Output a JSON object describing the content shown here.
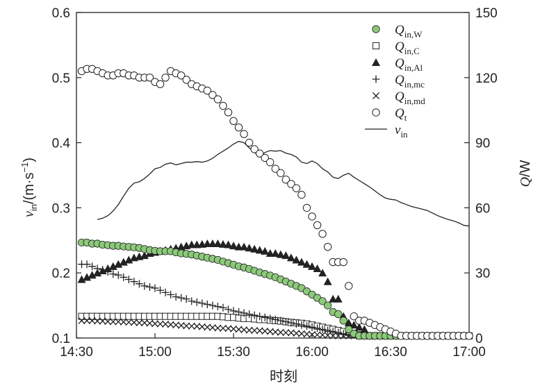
{
  "chart_data": {
    "type": "line",
    "xlabel": "时刻",
    "ylabel_left": {
      "base": "v",
      "sub": "in",
      "unit": "/(m·s",
      "exp": "−1",
      "close": ")"
    },
    "ylabel_right": {
      "base": "Q",
      "unit": "/W"
    },
    "x_tick_labels": [
      "14:30",
      "15:00",
      "15:30",
      "16:00",
      "16:30",
      "17:00"
    ],
    "x_range_minutes": [
      870,
      1020
    ],
    "y_left_range": [
      0.1,
      0.6
    ],
    "y_left_ticks": [
      "0.1",
      "0.2",
      "0.3",
      "0.4",
      "0.5",
      "0.6"
    ],
    "y_right_range": [
      0,
      150
    ],
    "y_right_ticks": [
      "0",
      "30",
      "60",
      "90",
      "120",
      "150"
    ],
    "legend": [
      {
        "base": "Q",
        "sub": "in,W",
        "key": "QinW",
        "marker": "circle-green"
      },
      {
        "base": "Q",
        "sub": "in,C",
        "key": "QinC",
        "marker": "square-open"
      },
      {
        "base": "Q",
        "sub": "in,Al",
        "key": "QinAl",
        "marker": "triangle-filled"
      },
      {
        "base": "Q",
        "sub": "in,mc",
        "key": "Qinmc",
        "marker": "plus"
      },
      {
        "base": "Q",
        "sub": "in,md",
        "key": "Qinmd",
        "marker": "cross"
      },
      {
        "base": "Q",
        "sub": "t",
        "key": "Qt",
        "marker": "circle-open"
      },
      {
        "base": "v",
        "sub": "in",
        "key": "vin",
        "marker": "line"
      }
    ],
    "colors": {
      "QinW": "#8cc97a",
      "axis": "#222222"
    },
    "series": [
      {
        "key": "vin",
        "axis": "left",
        "x": [
          878,
          880,
          882,
          884,
          886,
          888,
          890,
          892,
          894,
          896,
          898,
          900,
          902,
          904,
          906,
          908,
          910,
          912,
          914,
          916,
          918,
          920,
          922,
          924,
          926,
          928,
          930,
          932,
          934,
          936,
          938,
          940,
          942,
          944,
          946,
          948,
          950,
          952,
          954,
          956,
          958,
          960,
          962,
          964,
          966,
          968,
          970,
          972,
          974,
          976,
          978,
          980,
          982,
          984,
          986,
          988,
          990,
          992,
          994,
          996,
          998,
          1000,
          1002,
          1004,
          1006,
          1008,
          1010,
          1012,
          1014,
          1016,
          1018,
          1020
        ],
        "y": [
          0.282,
          0.284,
          0.288,
          0.295,
          0.305,
          0.318,
          0.33,
          0.338,
          0.34,
          0.345,
          0.352,
          0.36,
          0.362,
          0.367,
          0.369,
          0.366,
          0.368,
          0.37,
          0.37,
          0.371,
          0.37,
          0.372,
          0.376,
          0.382,
          0.387,
          0.392,
          0.398,
          0.402,
          0.4,
          0.392,
          0.385,
          0.38,
          0.385,
          0.388,
          0.387,
          0.388,
          0.384,
          0.382,
          0.378,
          0.37,
          0.368,
          0.372,
          0.368,
          0.36,
          0.355,
          0.347,
          0.345,
          0.35,
          0.353,
          0.347,
          0.342,
          0.337,
          0.332,
          0.326,
          0.32,
          0.315,
          0.313,
          0.312,
          0.308,
          0.305,
          0.302,
          0.3,
          0.298,
          0.296,
          0.292,
          0.288,
          0.285,
          0.282,
          0.28,
          0.277,
          0.273,
          0.272
        ]
      },
      {
        "key": "Qt",
        "axis": "right",
        "x": [
          872,
          874,
          876,
          878,
          880,
          882,
          884,
          886,
          888,
          890,
          892,
          894,
          896,
          898,
          900,
          902,
          904,
          906,
          908,
          910,
          912,
          914,
          916,
          918,
          920,
          922,
          924,
          926,
          928,
          930,
          932,
          934,
          936,
          938,
          940,
          942,
          944,
          946,
          948,
          950,
          952,
          954,
          956,
          958,
          960,
          962,
          964,
          966,
          968,
          970,
          972,
          974,
          976,
          978,
          980,
          982,
          984,
          986,
          988,
          990,
          992,
          994,
          996,
          998,
          1000,
          1002,
          1004,
          1006,
          1008,
          1010,
          1012,
          1014,
          1016,
          1018,
          1020
        ],
        "y": [
          123,
          124,
          124,
          123,
          122,
          121,
          121,
          122,
          122,
          121,
          121,
          120,
          120,
          120,
          118,
          117,
          120,
          123,
          122,
          121,
          119,
          117,
          116,
          115,
          114,
          112,
          110,
          107,
          104,
          100,
          97,
          94,
          90,
          87,
          85,
          83,
          81,
          78,
          76,
          73,
          71,
          69,
          66,
          60,
          56,
          52,
          48,
          42,
          35,
          35,
          35,
          24,
          10,
          8,
          8,
          7,
          6,
          5,
          4,
          3,
          2,
          1,
          1,
          1,
          1,
          1,
          1,
          1,
          1,
          1,
          1,
          1,
          1,
          1,
          1
        ]
      },
      {
        "key": "QinW",
        "axis": "right",
        "x": [
          872,
          874,
          876,
          878,
          880,
          882,
          884,
          886,
          888,
          890,
          892,
          894,
          896,
          898,
          900,
          902,
          904,
          906,
          908,
          910,
          912,
          914,
          916,
          918,
          920,
          922,
          924,
          926,
          928,
          930,
          932,
          934,
          936,
          938,
          940,
          942,
          944,
          946,
          948,
          950,
          952,
          954,
          956,
          958,
          960,
          962,
          964,
          966,
          968,
          970,
          972,
          974,
          976,
          978,
          980,
          982,
          984,
          986,
          988,
          990,
          992,
          994,
          996,
          998,
          1000,
          1002,
          1004,
          1006,
          1008,
          1010,
          1012,
          1014,
          1016,
          1018,
          1020
        ],
        "y": [
          44,
          44,
          43.5,
          43.5,
          43,
          42.8,
          42.5,
          42.5,
          42.2,
          42,
          41.8,
          41.5,
          41,
          40.5,
          40.2,
          40,
          40,
          40,
          39.5,
          39,
          38.8,
          38.5,
          38,
          37.5,
          37,
          36.5,
          36,
          35.2,
          34.5,
          33.8,
          33,
          32.5,
          31.8,
          31,
          30.2,
          29.5,
          28.8,
          28,
          27,
          26,
          25,
          24,
          23,
          21.5,
          20,
          18.5,
          17,
          15,
          12,
          11,
          8,
          4,
          2,
          1,
          1,
          1,
          1,
          1,
          1,
          1,
          1,
          1,
          1,
          1,
          1,
          1,
          1,
          1,
          1,
          1,
          1,
          1,
          1,
          1,
          1
        ]
      },
      {
        "key": "QinAl",
        "axis": "right",
        "x": [
          872,
          874,
          876,
          878,
          880,
          882,
          884,
          886,
          888,
          890,
          892,
          894,
          896,
          898,
          900,
          902,
          904,
          906,
          908,
          910,
          912,
          914,
          916,
          918,
          920,
          922,
          924,
          926,
          928,
          930,
          932,
          934,
          936,
          938,
          940,
          942,
          944,
          946,
          948,
          950,
          952,
          954,
          956,
          958,
          960,
          962,
          964,
          966,
          968,
          970,
          972,
          974,
          976,
          978,
          980
        ],
        "y": [
          27,
          28,
          29,
          30,
          31,
          32,
          33,
          34,
          35,
          36,
          37,
          37.5,
          38,
          39,
          39.5,
          40,
          40.5,
          41,
          41.5,
          42,
          42.5,
          43,
          43,
          43.2,
          43.5,
          43.5,
          43.5,
          43.2,
          43,
          42.5,
          42,
          42,
          41.5,
          41,
          40.5,
          40,
          39,
          39,
          38.5,
          38,
          37,
          36,
          35,
          34,
          33,
          32,
          30,
          26,
          18,
          18,
          10,
          7,
          6,
          5,
          4
        ]
      },
      {
        "key": "Qinmc",
        "axis": "right",
        "x": [
          872,
          874,
          876,
          878,
          880,
          882,
          884,
          886,
          888,
          890,
          892,
          894,
          896,
          898,
          900,
          902,
          904,
          906,
          908,
          910,
          912,
          914,
          916,
          918,
          920,
          922,
          924,
          926,
          928,
          930,
          932,
          934,
          936,
          938,
          940,
          942,
          944,
          946,
          948,
          950,
          952,
          954,
          956,
          958,
          960,
          962,
          964,
          966,
          968,
          970,
          972,
          974,
          976,
          978,
          980,
          982,
          984,
          986,
          988,
          990,
          992,
          994,
          996
        ],
        "y": [
          34,
          34,
          33,
          32,
          31.5,
          30.5,
          29.5,
          29,
          28,
          27,
          26,
          25,
          24,
          23.5,
          23,
          22,
          21,
          20,
          19,
          18.5,
          18,
          17,
          16.5,
          16,
          15.5,
          15,
          14.5,
          14,
          13.2,
          12.5,
          12,
          11.5,
          11,
          10.5,
          10,
          9.5,
          9,
          8.5,
          8,
          7.5,
          7,
          6.5,
          6,
          5.5,
          5,
          4.5,
          4,
          3.5,
          3,
          2.5,
          2,
          1.5,
          1.5,
          1,
          1,
          1,
          1,
          1,
          1,
          1,
          1,
          1,
          1
        ]
      },
      {
        "key": "QinC",
        "axis": "right",
        "x": [
          872,
          874,
          876,
          878,
          880,
          882,
          884,
          886,
          888,
          890,
          892,
          894,
          896,
          898,
          900,
          902,
          904,
          906,
          908,
          910,
          912,
          914,
          916,
          918,
          920,
          922,
          924,
          926,
          928,
          930,
          932,
          934,
          936,
          938,
          940,
          942,
          944,
          946,
          948,
          950,
          952,
          954,
          956,
          958,
          960,
          962,
          964,
          966,
          968,
          970,
          972,
          974,
          976,
          978,
          980,
          982,
          984,
          986,
          988,
          990,
          992,
          994,
          996,
          998,
          1000,
          1002,
          1004,
          1006,
          1008,
          1010,
          1012,
          1014,
          1016,
          1018,
          1020
        ],
        "y": [
          10,
          10,
          10,
          10,
          10,
          10,
          10,
          10,
          10,
          10,
          10,
          10,
          10,
          10,
          10,
          10,
          10,
          10,
          10,
          10,
          10,
          10,
          10,
          10,
          10,
          10,
          10,
          9.8,
          9.5,
          9.5,
          9.2,
          9,
          9,
          8.8,
          8.5,
          8.5,
          8.2,
          8,
          7.8,
          7.5,
          7.2,
          7,
          6.8,
          6.5,
          6,
          5.5,
          5,
          4.5,
          4,
          3.5,
          3,
          2.5,
          2,
          1.5,
          1,
          1,
          1,
          1,
          1,
          1,
          1,
          1,
          1,
          1,
          1,
          1,
          1,
          1,
          1,
          1,
          1,
          1,
          1,
          1,
          1
        ]
      },
      {
        "key": "Qinmd",
        "axis": "right",
        "x": [
          872,
          874,
          876,
          878,
          880,
          882,
          884,
          886,
          888,
          890,
          892,
          894,
          896,
          898,
          900,
          902,
          904,
          906,
          908,
          910,
          912,
          914,
          916,
          918,
          920,
          922,
          924,
          926,
          928,
          930,
          932,
          934,
          936,
          938,
          940,
          942,
          944,
          946,
          948,
          950,
          952,
          954,
          956,
          958,
          960,
          962,
          964,
          966,
          968,
          970,
          972,
          974,
          976,
          978,
          980,
          982,
          984,
          986,
          988,
          990,
          992,
          994,
          996,
          998,
          1000,
          1002,
          1004,
          1006,
          1008,
          1010,
          1012,
          1014,
          1016,
          1018,
          1020
        ],
        "y": [
          8,
          8,
          8,
          7.8,
          7.8,
          7.6,
          7.5,
          7.5,
          7.4,
          7.3,
          7.2,
          7,
          7,
          6.8,
          6.6,
          6.5,
          6.4,
          6.2,
          6,
          5.8,
          5.6,
          5.5,
          5.4,
          5.2,
          5,
          4.8,
          4.6,
          4.5,
          4.4,
          4.2,
          4,
          3.8,
          3.6,
          3.5,
          3.4,
          3.2,
          3,
          2.8,
          2.6,
          2.5,
          2.4,
          2.2,
          2,
          1.8,
          1.6,
          1.5,
          1.4,
          1.2,
          1,
          1,
          1,
          1,
          1,
          1,
          1,
          1,
          1,
          1,
          1,
          1,
          1,
          1,
          1,
          1,
          1,
          1,
          1,
          1,
          1,
          1,
          1,
          1,
          1,
          1,
          1
        ]
      }
    ]
  }
}
